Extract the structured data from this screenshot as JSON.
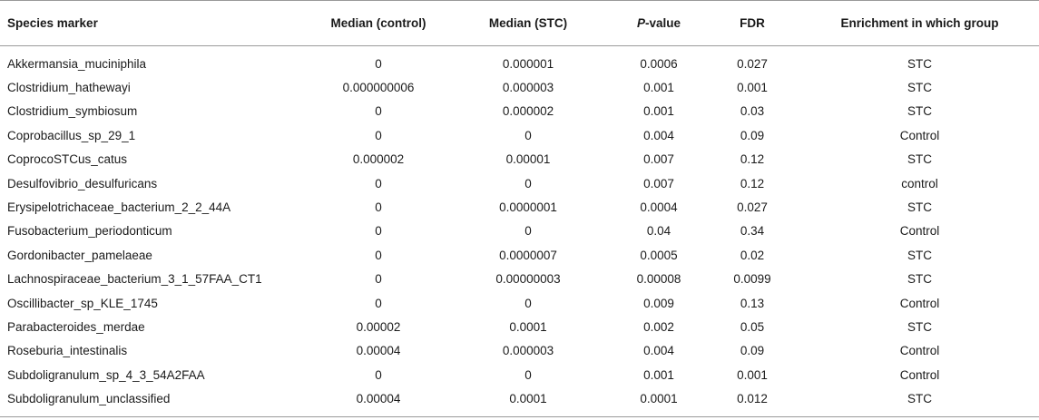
{
  "table": {
    "headers": {
      "species_marker": "Species marker",
      "median_control": "Median (control)",
      "median_stc": "Median (STC)",
      "p_value_italic": "P",
      "p_value_rest": "-value",
      "fdr": "FDR",
      "enrichment": "Enrichment in which group"
    },
    "rows": [
      [
        "Akkermansia_muciniphila",
        "0",
        "0.000001",
        "0.0006",
        "0.027",
        "STC"
      ],
      [
        "Clostridium_hathewayi",
        "0.000000006",
        "0.000003",
        "0.001",
        "0.001",
        "STC"
      ],
      [
        "Clostridium_symbiosum",
        "0",
        "0.000002",
        "0.001",
        "0.03",
        "STC"
      ],
      [
        "Coprobacillus_sp_29_1",
        "0",
        "0",
        "0.004",
        "0.09",
        "Control"
      ],
      [
        "CoprocoSTCus_catus",
        "0.000002",
        "0.00001",
        "0.007",
        "0.12",
        "STC"
      ],
      [
        "Desulfovibrio_desulfuricans",
        "0",
        "0",
        "0.007",
        "0.12",
        "control"
      ],
      [
        "Erysipelotrichaceae_bacterium_2_2_44A",
        "0",
        "0.0000001",
        "0.0004",
        "0.027",
        "STC"
      ],
      [
        "Fusobacterium_periodonticum",
        "0",
        "0",
        "0.04",
        "0.34",
        "Control"
      ],
      [
        "Gordonibacter_pamelaeae",
        "0",
        "0.0000007",
        "0.0005",
        "0.02",
        "STC"
      ],
      [
        "Lachnospiraceae_bacterium_3_1_57FAA_CT1",
        "0",
        "0.00000003",
        "0.00008",
        "0.0099",
        "STC"
      ],
      [
        "Oscillibacter_sp_KLE_1745",
        "0",
        "0",
        "0.009",
        "0.13",
        "Control"
      ],
      [
        "Parabacteroides_merdae",
        "0.00002",
        "0.0001",
        "0.002",
        "0.05",
        "STC"
      ],
      [
        "Roseburia_intestinalis",
        "0.00004",
        "0.000003",
        "0.004",
        "0.09",
        "Control"
      ],
      [
        "Subdoligranulum_sp_4_3_54A2FAA",
        "0",
        "0",
        "0.001",
        "0.001",
        "Control"
      ],
      [
        "Subdoligranulum_unclassified",
        "0.00004",
        "0.0001",
        "0.0001",
        "0.012",
        "STC"
      ]
    ]
  }
}
